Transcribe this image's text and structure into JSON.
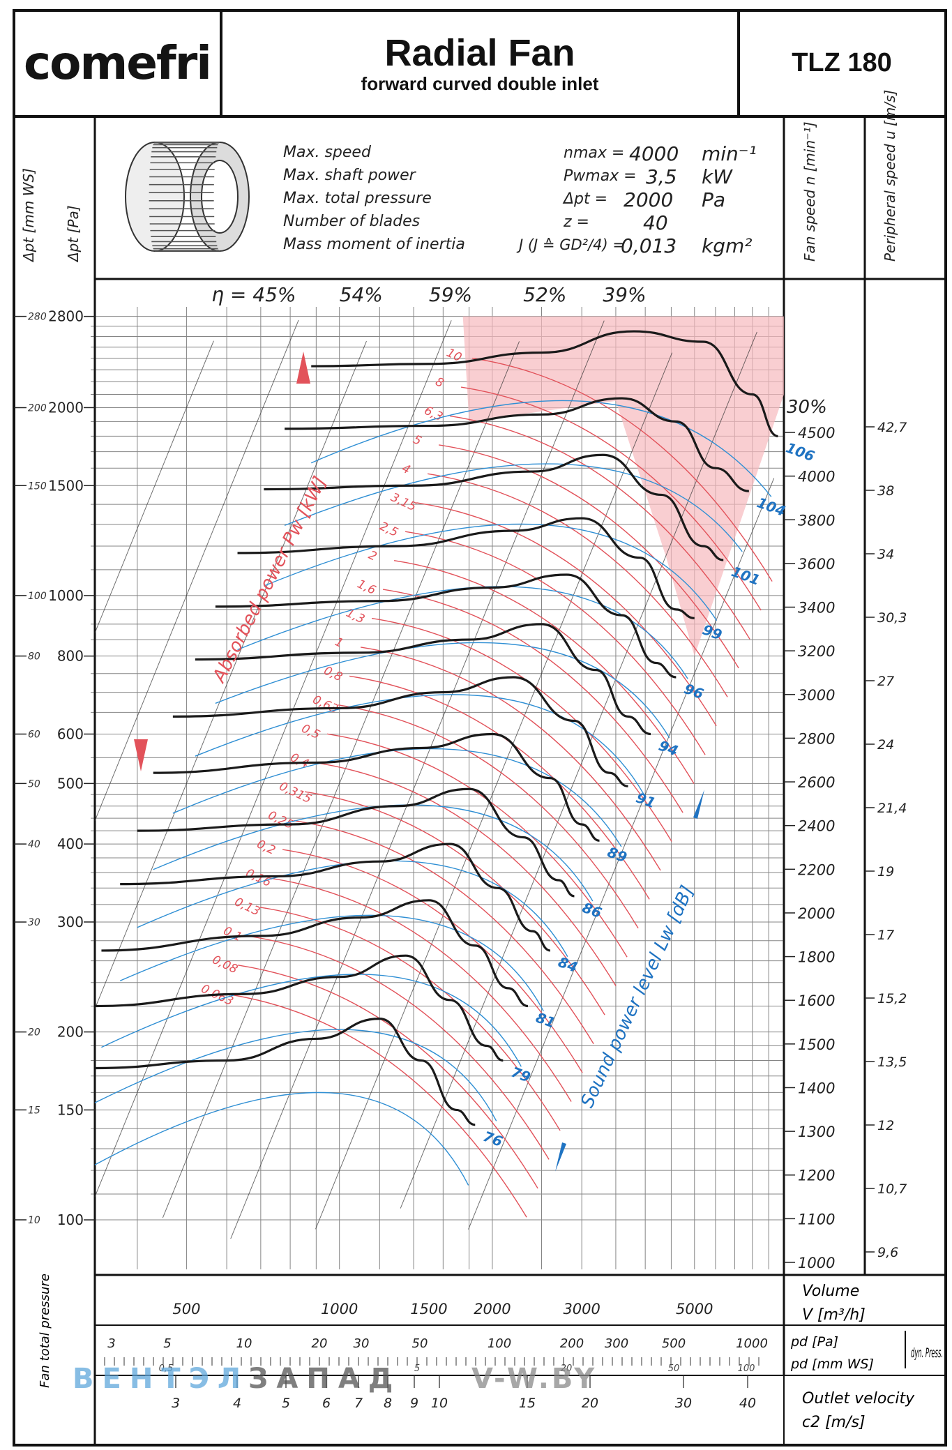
{
  "header": {
    "brand": "comefri",
    "title": "Radial Fan",
    "subtitle": "forward curved double inlet",
    "model": "TLZ 180"
  },
  "axis_heads": {
    "dp_mmws": "Δpt [mm WS]",
    "dp_pa": "Δpt [Pa]",
    "fan_speed": "Fan speed   n [min⁻¹]",
    "peripheral": "Peripheral speed   u [m/s]"
  },
  "specs": [
    {
      "label": "Max. speed",
      "symbol": "nmax =",
      "value": "4000",
      "unit": "min⁻¹"
    },
    {
      "label": "Max. shaft power",
      "symbol": "Pwmax =",
      "value": "3,5",
      "unit": "kW"
    },
    {
      "label": "Max. total pressure",
      "symbol": "Δpt =",
      "value": "2000",
      "unit": "Pa"
    },
    {
      "label": "Number of blades",
      "symbol": "z =",
      "value": "40",
      "unit": ""
    },
    {
      "label": "Mass moment of inertia",
      "symbol": "J (J ≙ GD²/4) =",
      "value": "0,013",
      "unit": "kgm²"
    }
  ],
  "bottom": {
    "volume_label": "Volume",
    "volume_symbol": "V [m³/h]",
    "pd_pa": "pd [Pa]",
    "pd_mmws": "pd [mm WS]",
    "dyn_press": "dyn. Press.",
    "outlet_label": "Outlet velocity",
    "outlet_symbol": "c2 [m/s]",
    "fan_total_pressure": "Fan total pressure"
  },
  "watermark": {
    "left": "ВЕНТЭЛ",
    "mid": "ЗАПАД",
    "right": "V-W.BY"
  },
  "colors": {
    "speed_curves": "#1a1a1a",
    "power_lines": "#e2525a",
    "efficiency_lines": "#2f8fd4",
    "sound_labels": "#1f73c2",
    "shaded_zone": "#f6b9bd",
    "grid": "#222222"
  },
  "chart_data": {
    "type": "line",
    "title": "",
    "xlabel": "Volume V [m³/h]",
    "ylabel": "Δpt [Pa]",
    "x_scale": "log",
    "y_scale": "log",
    "xlim": [
      330,
      7500
    ],
    "ylim": [
      90,
      2900
    ],
    "x_ticks": [
      500,
      1000,
      1500,
      2000,
      3000,
      5000
    ],
    "y_ticks_pa": [
      2800,
      2000,
      1500,
      1000,
      800,
      600,
      500,
      400,
      300,
      200,
      150,
      100
    ],
    "y_ticks_mmws": [
      280,
      200,
      150,
      100,
      80,
      60,
      50,
      40,
      30,
      20,
      15,
      10
    ],
    "efficiency_labels": [
      "η = 45%",
      "54%",
      "59%",
      "52%",
      "39%",
      "30%"
    ],
    "speed_labels": [
      "4500",
      "4000",
      "3800",
      "3600",
      "3400",
      "3200",
      "3000",
      "2800",
      "2600",
      "2400",
      "2200",
      "2000",
      "1800",
      "1600",
      "1500",
      "1400",
      "1300",
      "1200",
      "1100",
      "1000"
    ],
    "peripheral_labels": [
      "42,7",
      "38",
      "34",
      "30,3",
      "27",
      "24",
      "21,4",
      "19",
      "17",
      "15,2",
      "13,5",
      "12",
      "10,7",
      "9,6"
    ],
    "power_labels": [
      "10",
      "8",
      "6,3",
      "5",
      "4",
      "3,15",
      "2,5",
      "2",
      "1,6",
      "1,3",
      "1",
      "0,8",
      "0,63",
      "0,5",
      "0,4",
      "0,315",
      "0,25",
      "0,2",
      "0,16",
      "0,13",
      "0,1",
      "0,08",
      "0,063"
    ],
    "power_axis_label": "Absorbed power Pw [kW]",
    "sound_axis_label": "Sound power level Lw [dB]",
    "pd_pa_ticks": [
      "3",
      "5",
      "10",
      "20",
      "30",
      "50",
      "100",
      "200",
      "300",
      "500",
      "1000"
    ],
    "pd_mmws_ticks": [
      "0,5",
      "5",
      "20",
      "50",
      "100"
    ],
    "c2_ticks": [
      "3",
      "4",
      "5",
      "6",
      "7",
      "8",
      "9",
      "10",
      "15",
      "20",
      "30",
      "40"
    ],
    "series": [
      {
        "n": 4500,
        "Lw": "106",
        "points": [
          [
            880,
            2330
          ],
          [
            1500,
            2350
          ],
          [
            2500,
            2450
          ],
          [
            3800,
            2650
          ],
          [
            5200,
            2550
          ],
          [
            6500,
            2100
          ],
          [
            7300,
            1800
          ]
        ]
      },
      {
        "n": 4000,
        "Lw": "104",
        "points": [
          [
            780,
            1850
          ],
          [
            1500,
            1870
          ],
          [
            2500,
            1950
          ],
          [
            3600,
            2070
          ],
          [
            4600,
            1900
          ],
          [
            5500,
            1600
          ],
          [
            6400,
            1470
          ]
        ]
      },
      {
        "n": 3600,
        "Lw": "101",
        "points": [
          [
            710,
            1480
          ],
          [
            1400,
            1500
          ],
          [
            2400,
            1580
          ],
          [
            3300,
            1680
          ],
          [
            4300,
            1450
          ],
          [
            5200,
            1200
          ],
          [
            5700,
            1140
          ]
        ]
      },
      {
        "n": 3200,
        "Lw": "99",
        "points": [
          [
            630,
            1170
          ],
          [
            1300,
            1200
          ],
          [
            2200,
            1270
          ],
          [
            3000,
            1330
          ],
          [
            3900,
            1150
          ],
          [
            4600,
            950
          ],
          [
            5000,
            920
          ]
        ]
      },
      {
        "n": 2900,
        "Lw": "96",
        "points": [
          [
            570,
            960
          ],
          [
            1200,
            980
          ],
          [
            2000,
            1030
          ],
          [
            2800,
            1080
          ],
          [
            3600,
            930
          ],
          [
            4200,
            780
          ],
          [
            4600,
            740
          ]
        ]
      },
      {
        "n": 2600,
        "Lw": "94",
        "points": [
          [
            520,
            790
          ],
          [
            1100,
            810
          ],
          [
            1800,
            850
          ],
          [
            2500,
            900
          ],
          [
            3200,
            760
          ],
          [
            3700,
            640
          ],
          [
            4100,
            600
          ]
        ]
      },
      {
        "n": 2300,
        "Lw": "91",
        "points": [
          [
            470,
            640
          ],
          [
            1000,
            660
          ],
          [
            1600,
            700
          ],
          [
            2200,
            740
          ],
          [
            2900,
            630
          ],
          [
            3400,
            520
          ],
          [
            3700,
            495
          ]
        ]
      },
      {
        "n": 2000,
        "Lw": "89",
        "points": [
          [
            430,
            520
          ],
          [
            900,
            540
          ],
          [
            1450,
            570
          ],
          [
            2000,
            600
          ],
          [
            2600,
            510
          ],
          [
            3000,
            430
          ],
          [
            3250,
            405
          ]
        ]
      },
      {
        "n": 1800,
        "Lw": "86",
        "points": [
          [
            400,
            420
          ],
          [
            800,
            430
          ],
          [
            1300,
            460
          ],
          [
            1800,
            490
          ],
          [
            2300,
            410
          ],
          [
            2700,
            350
          ],
          [
            2900,
            330
          ]
        ]
      },
      {
        "n": 1600,
        "Lw": "84",
        "points": [
          [
            370,
            345
          ],
          [
            750,
            355
          ],
          [
            1200,
            375
          ],
          [
            1650,
            400
          ],
          [
            2050,
            340
          ],
          [
            2400,
            290
          ],
          [
            2600,
            270
          ]
        ]
      },
      {
        "n": 1450,
        "Lw": "81",
        "points": [
          [
            340,
            270
          ],
          [
            700,
            285
          ],
          [
            1100,
            305
          ],
          [
            1500,
            325
          ],
          [
            1850,
            275
          ],
          [
            2150,
            235
          ],
          [
            2350,
            220
          ]
        ]
      },
      {
        "n": 1300,
        "Lw": "79",
        "points": [
          [
            330,
            220
          ],
          [
            650,
            230
          ],
          [
            1000,
            245
          ],
          [
            1350,
            265
          ],
          [
            1650,
            225
          ],
          [
            1950,
            190
          ],
          [
            2100,
            180
          ]
        ]
      },
      {
        "n": 1150,
        "Lw": "76",
        "points": [
          [
            330,
            175
          ],
          [
            600,
            180
          ],
          [
            900,
            195
          ],
          [
            1200,
            210
          ],
          [
            1450,
            180
          ],
          [
            1700,
            150
          ],
          [
            1850,
            142
          ]
        ]
      }
    ]
  }
}
